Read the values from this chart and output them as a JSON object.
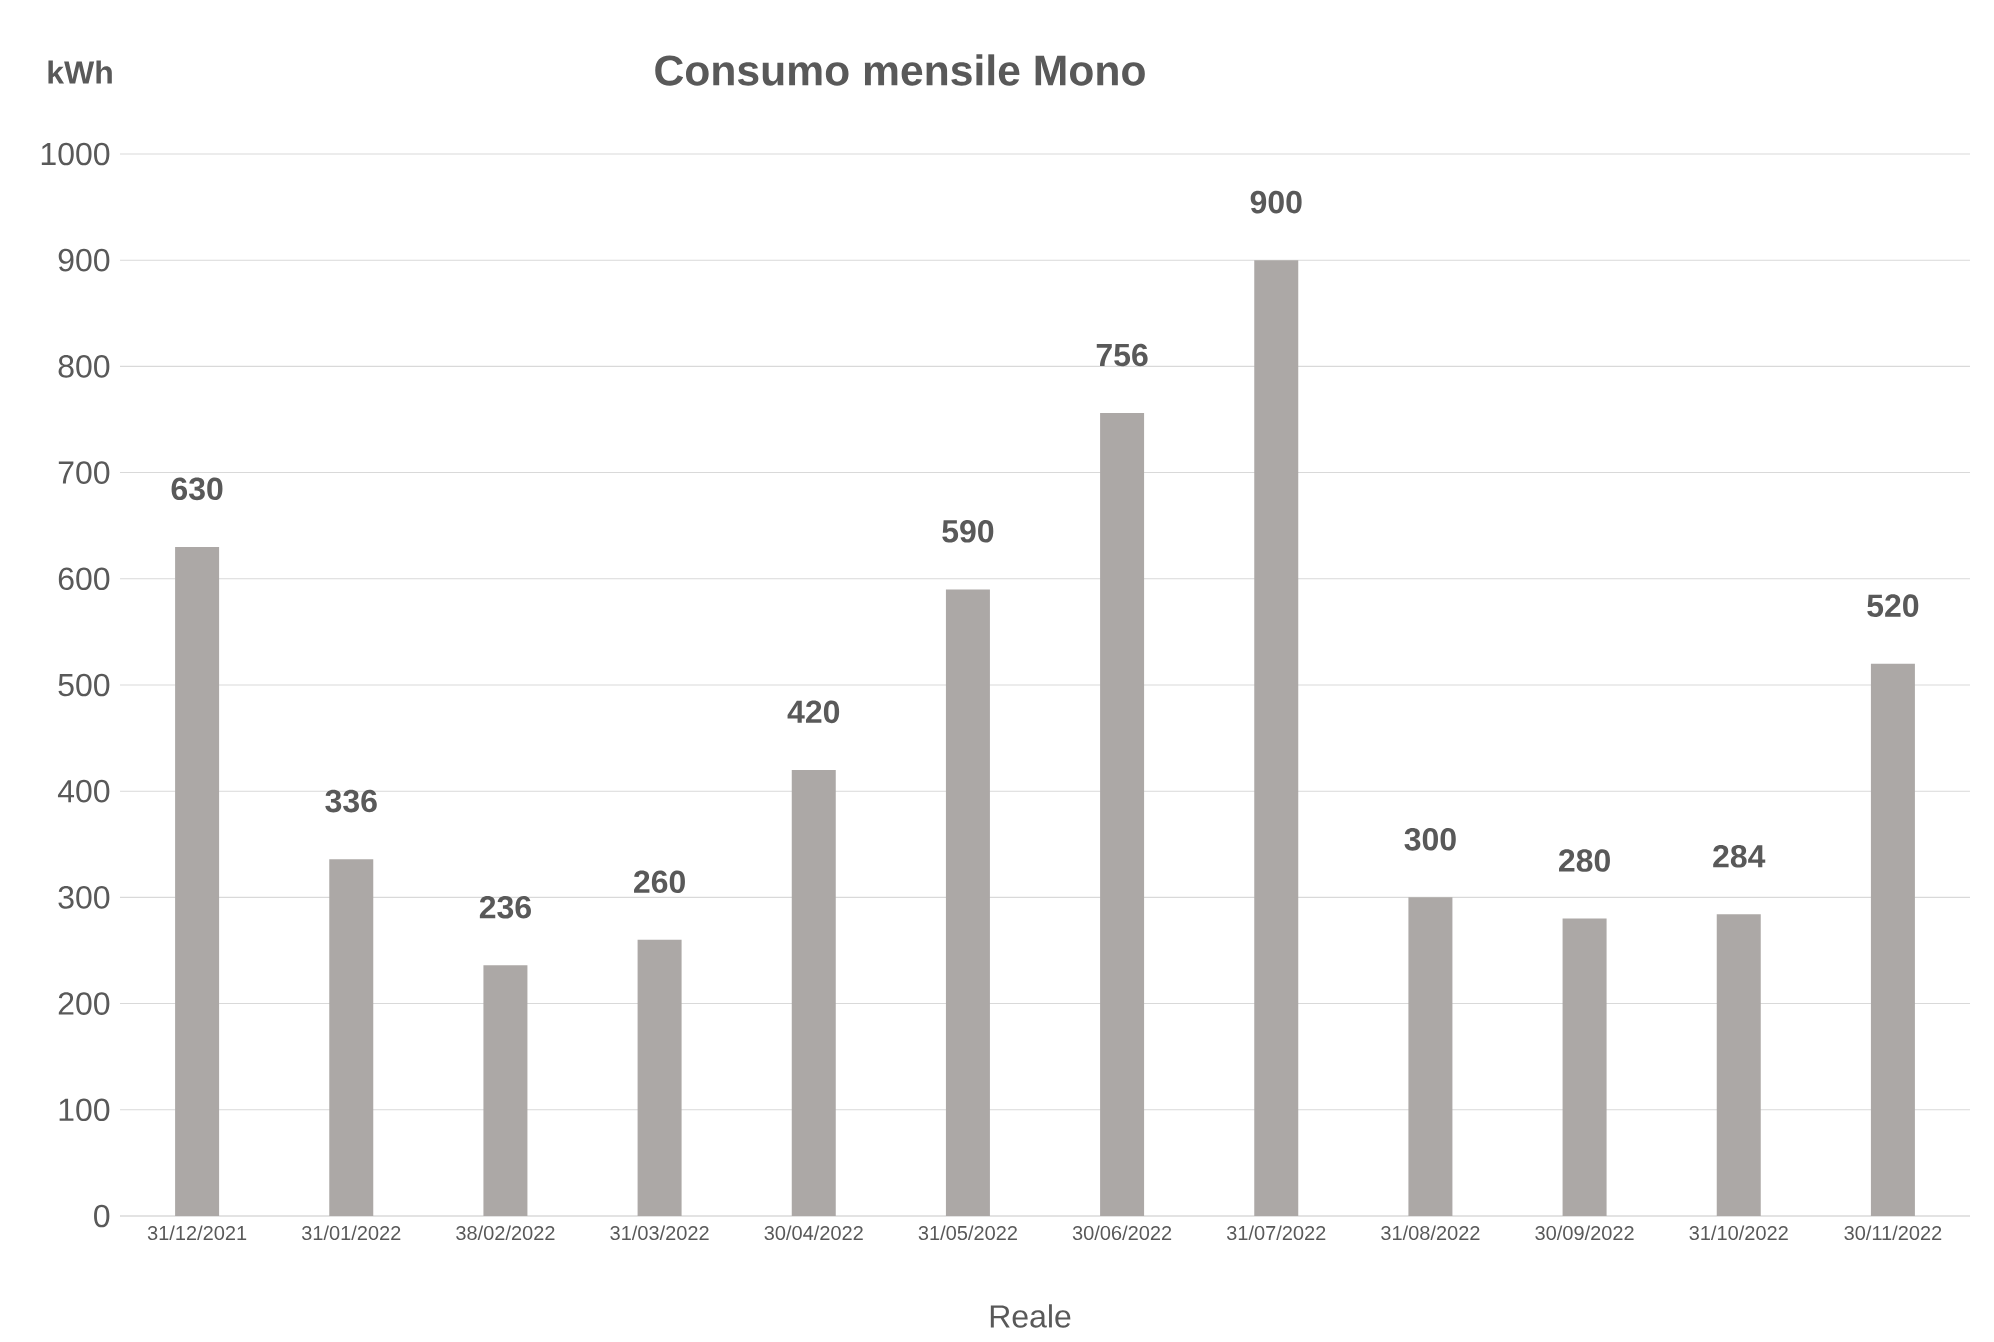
{
  "chart_data": {
    "type": "bar",
    "title": "Consumo mensile Mono",
    "ylabel": "kWh",
    "xlabel": "Reale",
    "categories": [
      "31/12/2021",
      "31/01/2022",
      "38/02/2022",
      "31/03/2022",
      "30/04/2022",
      "31/05/2022",
      "30/06/2022",
      "31/07/2022",
      "31/08/2022",
      "30/09/2022",
      "31/10/2022",
      "30/11/2022"
    ],
    "values": [
      630,
      336,
      236,
      260,
      420,
      590,
      756,
      900,
      300,
      280,
      284,
      520
    ],
    "color": "#aca8a6",
    "ylim": [
      0,
      1000
    ],
    "yticks": [
      0,
      100,
      200,
      300,
      400,
      500,
      600,
      700,
      800,
      900,
      1000
    ],
    "grid": "y",
    "data_labels": true
  }
}
